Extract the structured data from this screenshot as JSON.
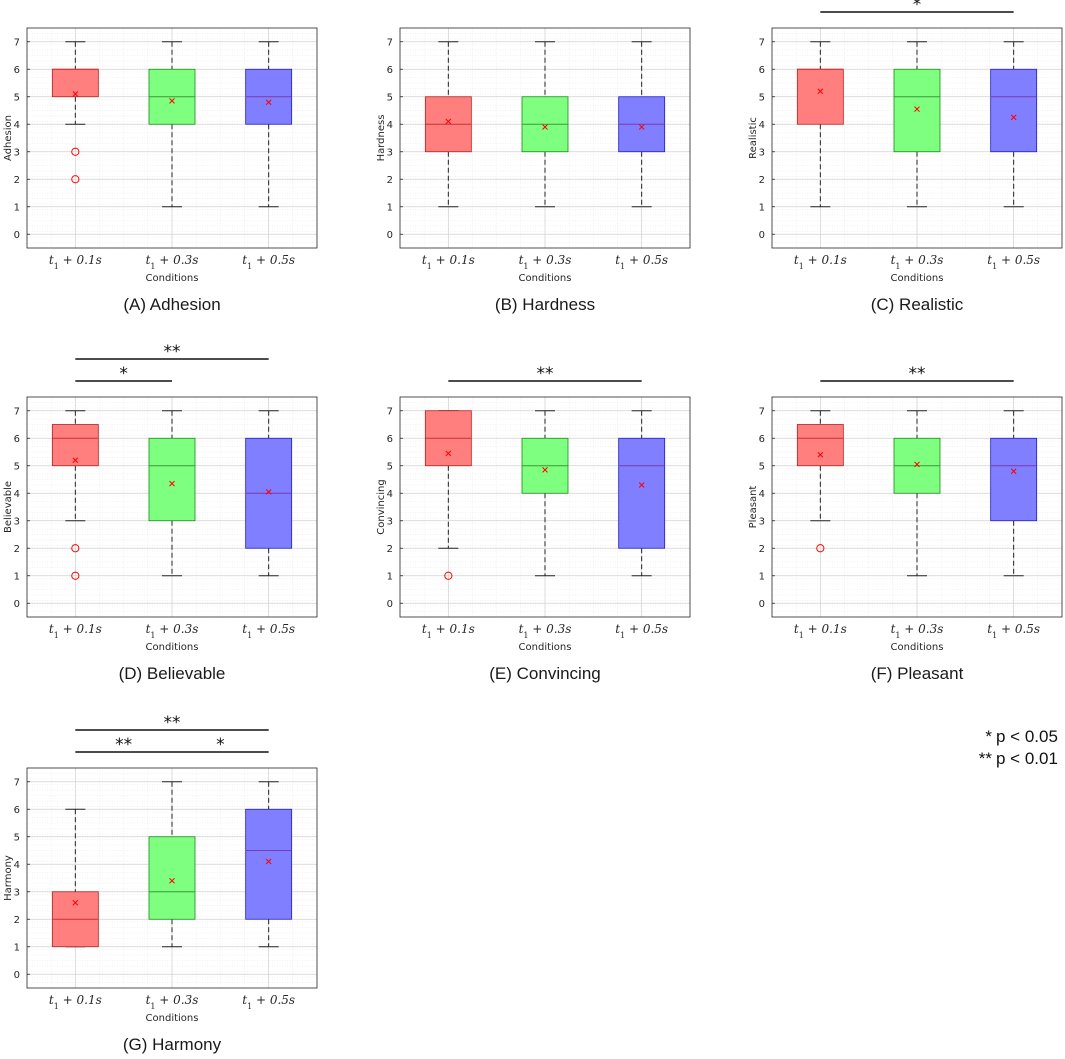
{
  "legend": [
    {
      "marker": "*",
      "text": "p < 0.05"
    },
    {
      "marker": "**",
      "text": "p < 0.01"
    }
  ],
  "colors": {
    "c1": "#ff7f7f",
    "c2": "#7fff7f",
    "c3": "#7f7fff",
    "mean": "#ff0000",
    "outlier": "#ff0000"
  },
  "chart_data": [
    {
      "type": "box",
      "caption": "(A) Adhesion",
      "ylabel": "Adhesion",
      "xlabel": "Conditions",
      "ylim": [
        -0.5,
        7.5
      ],
      "yticks": [
        0,
        1,
        2,
        3,
        4,
        5,
        6,
        7
      ],
      "categories": [
        "t_1 + 0.1s",
        "t_1 + 0.3s",
        "t_1 + 0.5s"
      ],
      "boxes": [
        {
          "q1": 5,
          "median": 6,
          "q3": 6,
          "whisker_low": 4,
          "whisker_high": 7,
          "mean": 5.1,
          "outliers": [
            3,
            2
          ]
        },
        {
          "q1": 4,
          "median": 5,
          "q3": 6,
          "whisker_low": 1,
          "whisker_high": 7,
          "mean": 4.85,
          "outliers": []
        },
        {
          "q1": 4,
          "median": 5,
          "q3": 6,
          "whisker_low": 1,
          "whisker_high": 7,
          "mean": 4.8,
          "outliers": []
        }
      ],
      "significance": []
    },
    {
      "type": "box",
      "caption": "(B) Hardness",
      "ylabel": "Hardness",
      "xlabel": "Conditions",
      "ylim": [
        -0.5,
        7.5
      ],
      "yticks": [
        0,
        1,
        2,
        3,
        4,
        5,
        6,
        7
      ],
      "categories": [
        "t_1 + 0.1s",
        "t_1 + 0.3s",
        "t_1 + 0.5s"
      ],
      "boxes": [
        {
          "q1": 3,
          "median": 4,
          "q3": 5,
          "whisker_low": 1,
          "whisker_high": 7,
          "mean": 4.1,
          "outliers": []
        },
        {
          "q1": 3,
          "median": 4,
          "q3": 5,
          "whisker_low": 1,
          "whisker_high": 7,
          "mean": 3.9,
          "outliers": []
        },
        {
          "q1": 3,
          "median": 4,
          "q3": 5,
          "whisker_low": 1,
          "whisker_high": 7,
          "mean": 3.9,
          "outliers": []
        }
      ],
      "significance": []
    },
    {
      "type": "box",
      "caption": "(C) Realistic",
      "ylabel": "Realistic",
      "xlabel": "Conditions",
      "ylim": [
        -0.5,
        7.5
      ],
      "yticks": [
        0,
        1,
        2,
        3,
        4,
        5,
        6,
        7
      ],
      "categories": [
        "t_1 + 0.1s",
        "t_1 + 0.3s",
        "t_1 + 0.5s"
      ],
      "boxes": [
        {
          "q1": 4,
          "median": 6,
          "q3": 6,
          "whisker_low": 1,
          "whisker_high": 7,
          "mean": 5.2,
          "outliers": []
        },
        {
          "q1": 3,
          "median": 5,
          "q3": 6,
          "whisker_low": 1,
          "whisker_high": 7,
          "mean": 4.55,
          "outliers": []
        },
        {
          "q1": 3,
          "median": 5,
          "q3": 6,
          "whisker_low": 1,
          "whisker_high": 7,
          "mean": 4.25,
          "outliers": []
        }
      ],
      "significance": [
        {
          "from": 0,
          "to": 2,
          "label": "*",
          "level": 1
        }
      ]
    },
    {
      "type": "box",
      "caption": "(D) Believable",
      "ylabel": "Believable",
      "xlabel": "Conditions",
      "ylim": [
        -0.5,
        7.5
      ],
      "yticks": [
        0,
        1,
        2,
        3,
        4,
        5,
        6,
        7
      ],
      "categories": [
        "t_1 + 0.1s",
        "t_1 + 0.3s",
        "t_1 + 0.5s"
      ],
      "boxes": [
        {
          "q1": 5,
          "median": 6,
          "q3": 6.5,
          "whisker_low": 3,
          "whisker_high": 7,
          "mean": 5.2,
          "outliers": [
            2,
            1
          ]
        },
        {
          "q1": 3,
          "median": 5,
          "q3": 6,
          "whisker_low": 1,
          "whisker_high": 7,
          "mean": 4.35,
          "outliers": []
        },
        {
          "q1": 2,
          "median": 4,
          "q3": 6,
          "whisker_low": 1,
          "whisker_high": 7,
          "mean": 4.05,
          "outliers": []
        }
      ],
      "significance": [
        {
          "from": 0,
          "to": 2,
          "label": "**",
          "level": 2
        },
        {
          "from": 0,
          "to": 1,
          "label": "*",
          "level": 1
        }
      ]
    },
    {
      "type": "box",
      "caption": "(E) Convincing",
      "ylabel": "Convincing",
      "xlabel": "Conditions",
      "ylim": [
        -0.5,
        7.5
      ],
      "yticks": [
        0,
        1,
        2,
        3,
        4,
        5,
        6,
        7
      ],
      "categories": [
        "t_1 + 0.1s",
        "t_1 + 0.3s",
        "t_1 + 0.5s"
      ],
      "boxes": [
        {
          "q1": 5,
          "median": 6,
          "q3": 7,
          "whisker_low": 2,
          "whisker_high": 7,
          "mean": 5.45,
          "outliers": [
            1
          ]
        },
        {
          "q1": 4,
          "median": 5,
          "q3": 6,
          "whisker_low": 1,
          "whisker_high": 7,
          "mean": 4.85,
          "outliers": []
        },
        {
          "q1": 2,
          "median": 5,
          "q3": 6,
          "whisker_low": 1,
          "whisker_high": 7,
          "mean": 4.3,
          "outliers": []
        }
      ],
      "significance": [
        {
          "from": 0,
          "to": 2,
          "label": "**",
          "level": 1
        }
      ]
    },
    {
      "type": "box",
      "caption": "(F) Pleasant",
      "ylabel": "Pleasant",
      "xlabel": "Conditions",
      "ylim": [
        -0.5,
        7.5
      ],
      "yticks": [
        0,
        1,
        2,
        3,
        4,
        5,
        6,
        7
      ],
      "categories": [
        "t_1 + 0.1s",
        "t_1 + 0.3s",
        "t_1 + 0.5s"
      ],
      "boxes": [
        {
          "q1": 5,
          "median": 6,
          "q3": 6.5,
          "whisker_low": 3,
          "whisker_high": 7,
          "mean": 5.4,
          "outliers": [
            2
          ]
        },
        {
          "q1": 4,
          "median": 5,
          "q3": 6,
          "whisker_low": 1,
          "whisker_high": 7,
          "mean": 5.05,
          "outliers": []
        },
        {
          "q1": 3,
          "median": 5,
          "q3": 6,
          "whisker_low": 1,
          "whisker_high": 7,
          "mean": 4.8,
          "outliers": []
        }
      ],
      "significance": [
        {
          "from": 0,
          "to": 2,
          "label": "**",
          "level": 1
        }
      ]
    },
    {
      "type": "box",
      "caption": "(G) Harmony",
      "ylabel": "Harmony",
      "xlabel": "Conditions",
      "ylim": [
        -0.5,
        7.5
      ],
      "yticks": [
        0,
        1,
        2,
        3,
        4,
        5,
        6,
        7
      ],
      "categories": [
        "t_1 + 0.1s",
        "t_1 + 0.3s",
        "t_1 + 0.5s"
      ],
      "boxes": [
        {
          "q1": 1,
          "median": 2,
          "q3": 3,
          "whisker_low": 1,
          "whisker_high": 6,
          "mean": 2.6,
          "outliers": []
        },
        {
          "q1": 2,
          "median": 3,
          "q3": 5,
          "whisker_low": 1,
          "whisker_high": 7,
          "mean": 3.4,
          "outliers": []
        },
        {
          "q1": 2,
          "median": 4.5,
          "q3": 6,
          "whisker_low": 1,
          "whisker_high": 7,
          "mean": 4.1,
          "outliers": []
        }
      ],
      "significance": [
        {
          "from": 0,
          "to": 2,
          "label": "**",
          "level": 2
        },
        {
          "from": 0,
          "to": 1,
          "label": "**",
          "level": 1
        },
        {
          "from": 1,
          "to": 2,
          "label": "*",
          "level": 1
        }
      ]
    }
  ]
}
